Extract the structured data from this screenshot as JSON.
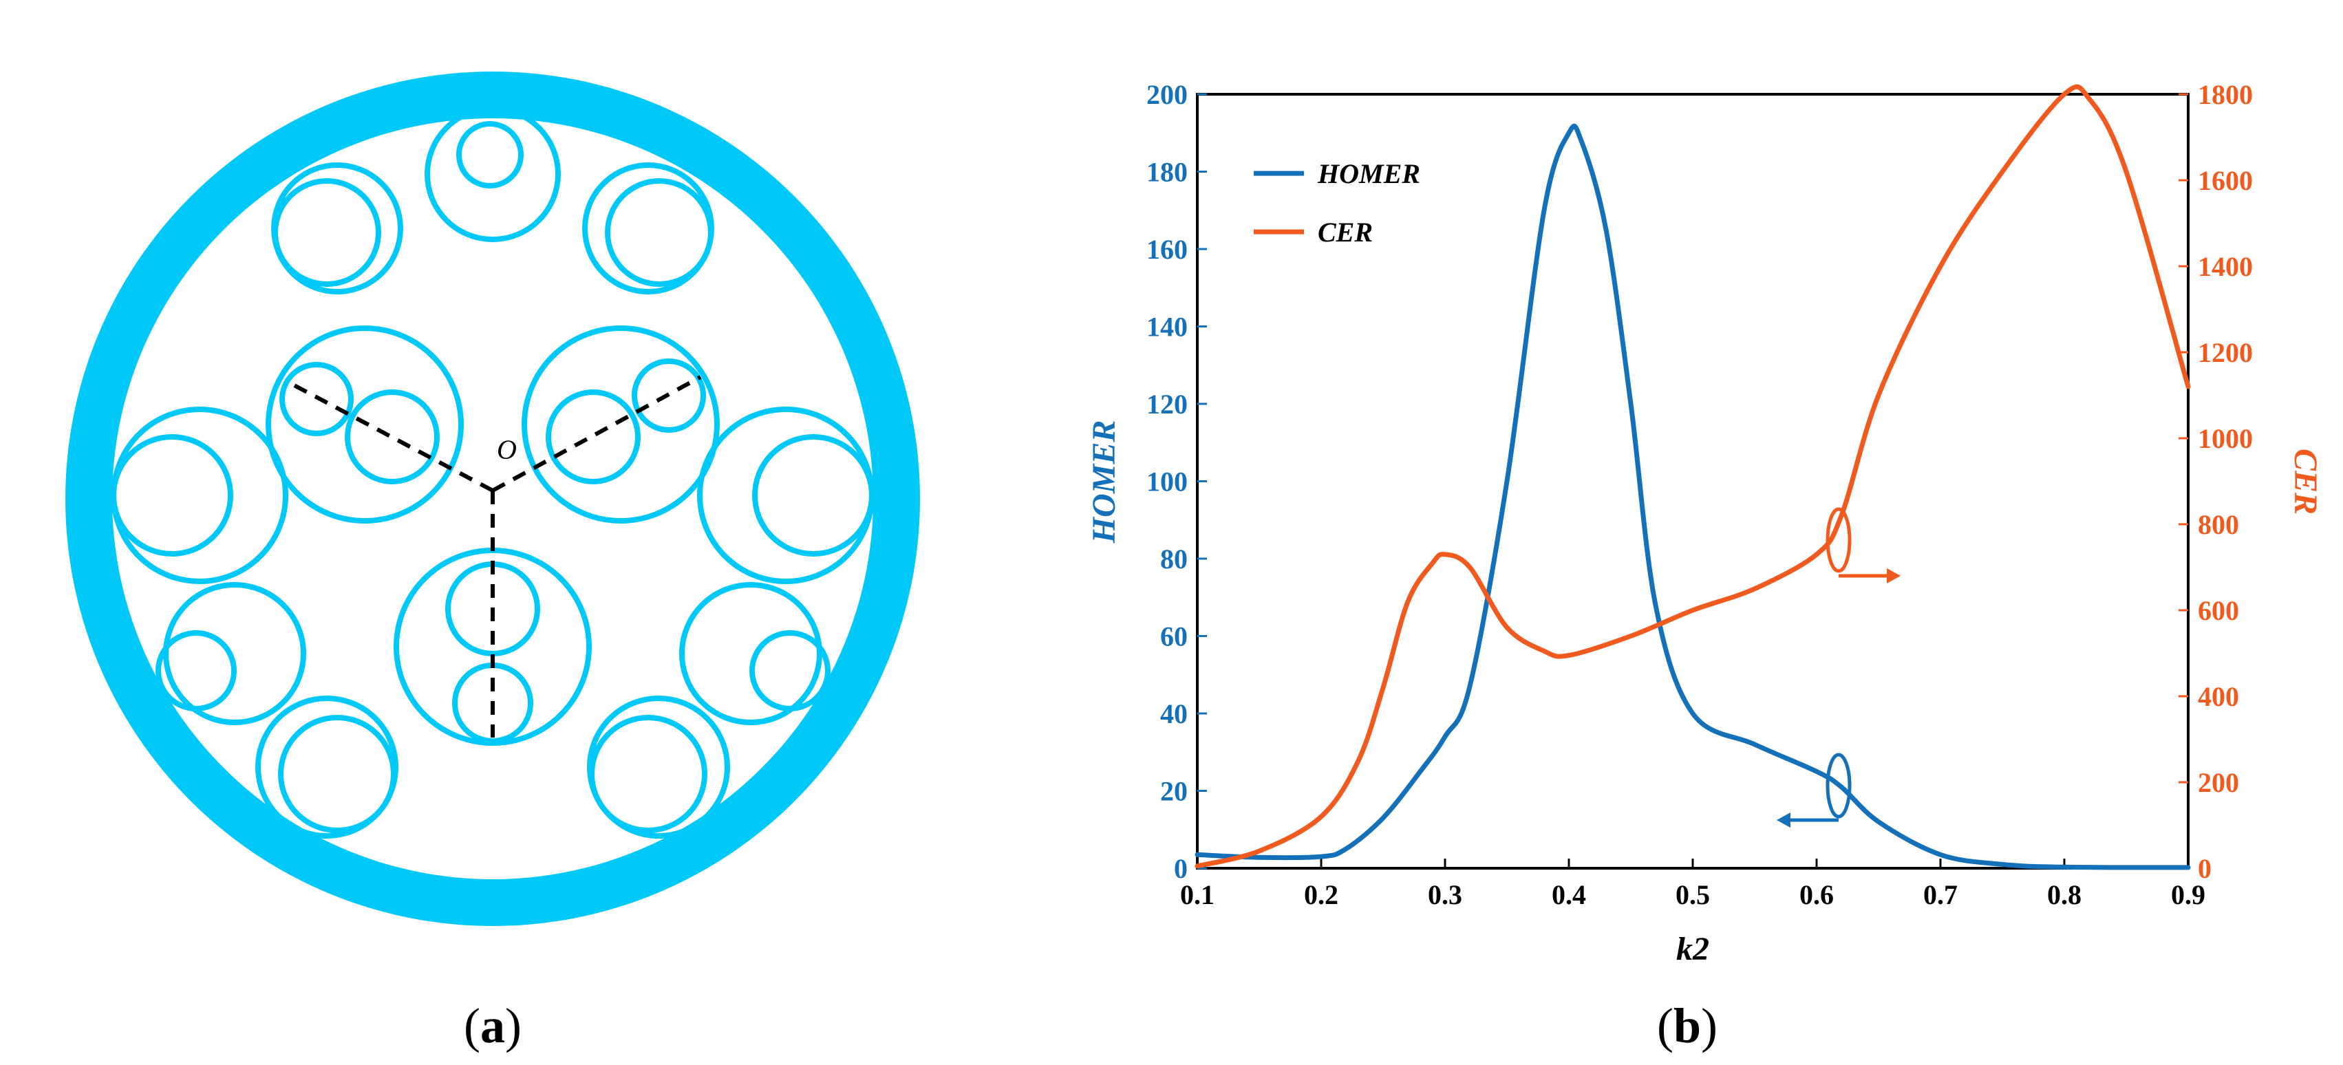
{
  "panel_a": {
    "caption_open": "(",
    "caption_letter": "a",
    "caption_close": ")",
    "center_label": "O",
    "color": "#00c8f8",
    "dash_color": "#000000"
  },
  "panel_b": {
    "caption_open": "(",
    "caption_letter": "b",
    "caption_close": ")"
  },
  "chart_data": {
    "type": "line",
    "xlabel": "k2",
    "ylabel_left": "HOMER",
    "ylabel_right": "CER",
    "xlim": [
      0.1,
      0.9
    ],
    "ylim_left": [
      0,
      200
    ],
    "ylim_right": [
      0,
      1800
    ],
    "xticks": [
      "0.1",
      "0.2",
      "0.3",
      "0.4",
      "0.5",
      "0.6",
      "0.7",
      "0.8",
      "0.9"
    ],
    "yticks_left": [
      "0",
      "20",
      "40",
      "60",
      "80",
      "100",
      "120",
      "140",
      "160",
      "180",
      "200"
    ],
    "yticks_right": [
      "0",
      "200",
      "400",
      "600",
      "800",
      "1000",
      "1200",
      "1400",
      "1600",
      "1800"
    ],
    "legend_position": "top-left",
    "series": [
      {
        "name": "HOMER",
        "axis": "left",
        "color": "#1470b8",
        "x": [
          0.1,
          0.15,
          0.2,
          0.22,
          0.25,
          0.28,
          0.3,
          0.32,
          0.35,
          0.38,
          0.4,
          0.41,
          0.43,
          0.45,
          0.47,
          0.5,
          0.55,
          0.6,
          0.62,
          0.65,
          0.7,
          0.75,
          0.8,
          0.9
        ],
        "values": [
          3.5,
          2.8,
          3,
          5,
          13,
          25,
          34,
          47,
          100,
          170,
          190,
          188,
          165,
          120,
          68,
          40,
          32,
          25,
          21,
          12,
          3.5,
          1,
          0.3,
          0.2
        ]
      },
      {
        "name": "CER",
        "axis": "right",
        "color": "#f05a1e",
        "x": [
          0.1,
          0.15,
          0.2,
          0.23,
          0.25,
          0.27,
          0.29,
          0.3,
          0.32,
          0.35,
          0.38,
          0.4,
          0.45,
          0.5,
          0.55,
          0.6,
          0.62,
          0.65,
          0.7,
          0.75,
          0.8,
          0.82,
          0.85,
          0.9
        ],
        "values": [
          5,
          40,
          120,
          250,
          420,
          620,
          710,
          730,
          700,
          560,
          505,
          495,
          540,
          600,
          650,
          730,
          820,
          1100,
          1400,
          1620,
          1800,
          1790,
          1620,
          1120
        ]
      }
    ]
  }
}
